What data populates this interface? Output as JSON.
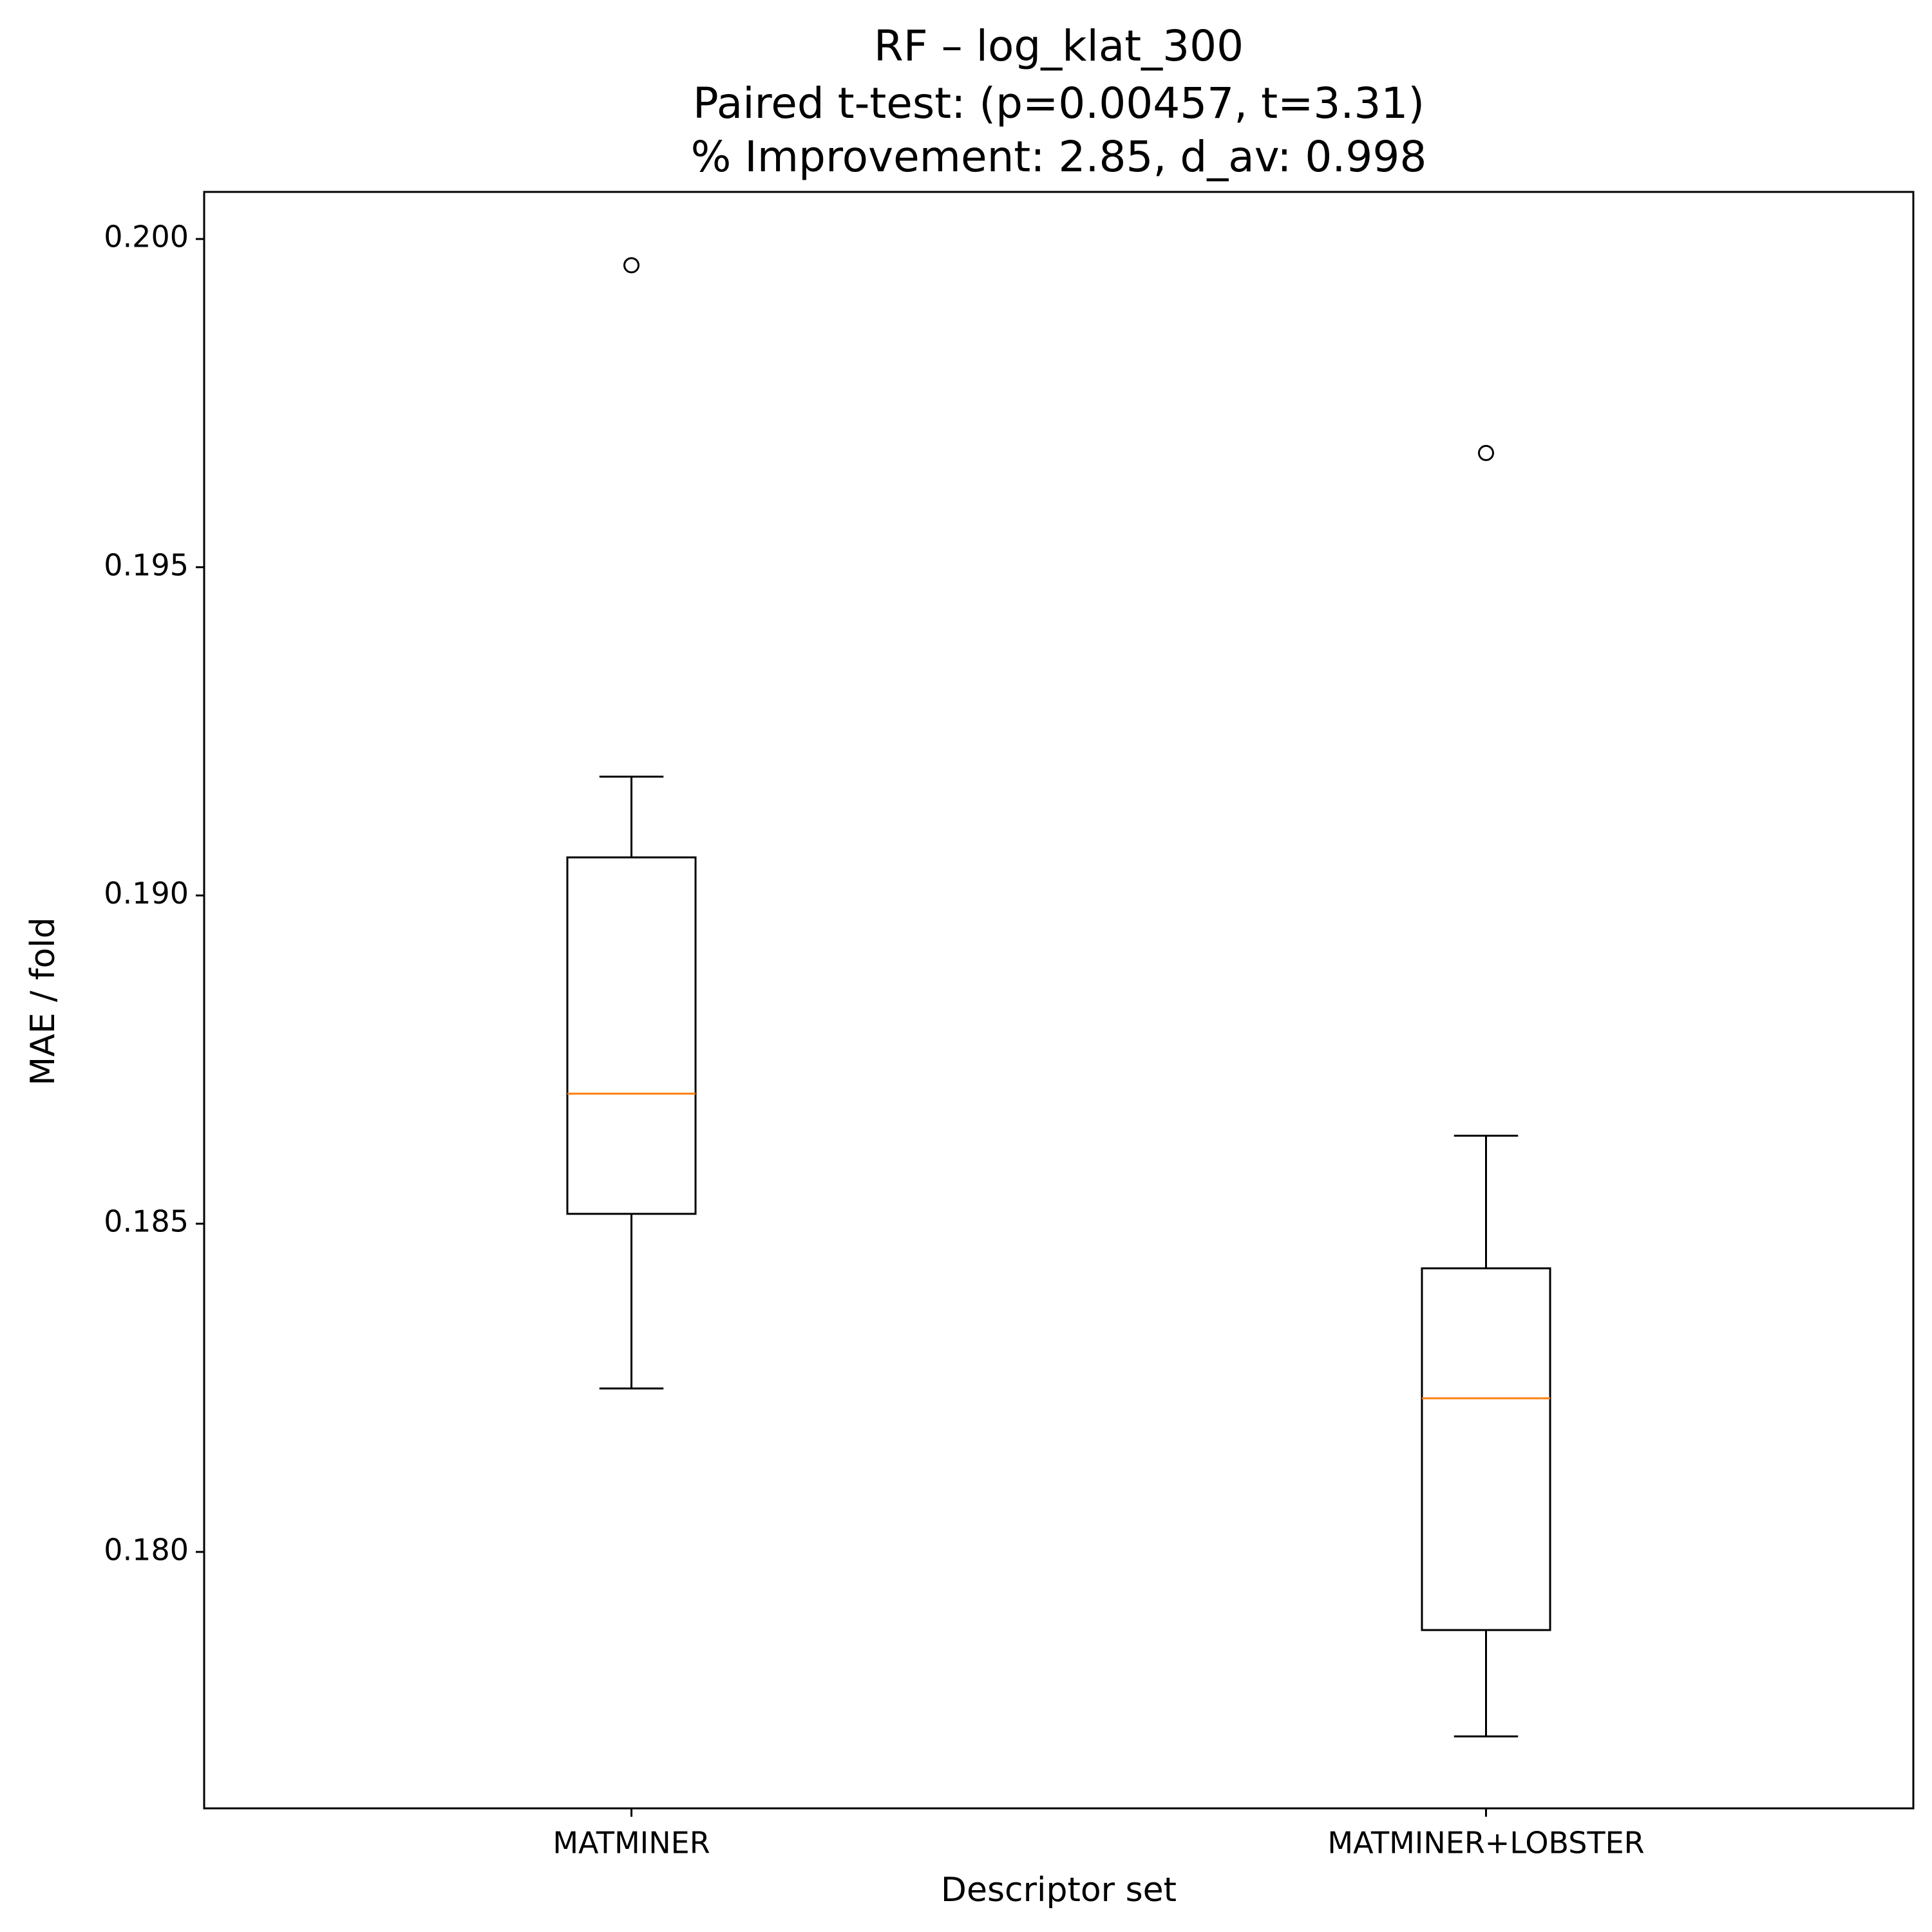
{
  "chart_data": {
    "type": "box",
    "title": [
      "RF – log_klat_300",
      "Paired t-test: (p=0.00457, t=3.31)",
      "% Improvement: 2.85, d_av: 0.998"
    ],
    "x_label": "Descriptor set",
    "y_label": "MAE / fold",
    "categories": [
      "MATMINER",
      "MATMINER+LOBSTER"
    ],
    "whisker_low": [
      0.18249,
      0.17719
    ],
    "q1": [
      0.18515,
      0.17881
    ],
    "median": [
      0.18698,
      0.18234
    ],
    "q3": [
      0.19058,
      0.18432
    ],
    "whisker_high": [
      0.19181,
      0.18634
    ],
    "outliers": [
      [
        0.1996
      ],
      [
        0.19674
      ]
    ],
    "box_color": "#000000",
    "median_color": "#ff7f0e",
    "ylim": [
      0.176094,
      0.200717
    ],
    "yticks": [
      {
        "value": 0.18,
        "label": "0.180"
      },
      {
        "value": 0.185,
        "label": "0.185"
      },
      {
        "value": 0.19,
        "label": "0.190"
      },
      {
        "value": 0.195,
        "label": "0.195"
      },
      {
        "value": 0.2,
        "label": "0.200"
      }
    ]
  }
}
